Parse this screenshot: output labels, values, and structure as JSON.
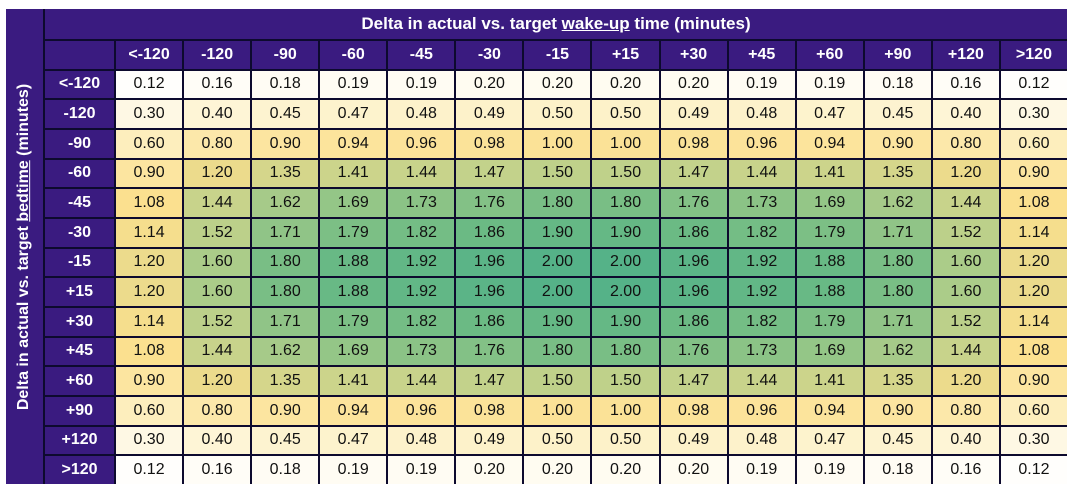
{
  "chart_data": {
    "type": "heatmap",
    "title_parts": [
      "Delta in actual vs. target ",
      "wake-up",
      " time (minutes)"
    ],
    "ylabel_parts": [
      "Delta in actual vs. target ",
      "bedtime",
      " (minutes)"
    ],
    "x_categories": [
      "<-120",
      "-120",
      "-90",
      "-60",
      "-45",
      "-30",
      "-15",
      "+15",
      "+30",
      "+45",
      "+60",
      "+90",
      "+120",
      ">120"
    ],
    "y_categories": [
      "<-120",
      "-120",
      "-90",
      "-60",
      "-45",
      "-30",
      "-15",
      "+15",
      "+30",
      "+45",
      "+60",
      "+90",
      "+120",
      ">120"
    ],
    "values": [
      [
        "0.12",
        "0.16",
        "0.18",
        "0.19",
        "0.19",
        "0.20",
        "0.20",
        "0.20",
        "0.20",
        "0.19",
        "0.19",
        "0.18",
        "0.16",
        "0.12"
      ],
      [
        "0.30",
        "0.40",
        "0.45",
        "0.47",
        "0.48",
        "0.49",
        "0.50",
        "0.50",
        "0.49",
        "0.48",
        "0.47",
        "0.45",
        "0.40",
        "0.30"
      ],
      [
        "0.60",
        "0.80",
        "0.90",
        "0.94",
        "0.96",
        "0.98",
        "1.00",
        "1.00",
        "0.98",
        "0.96",
        "0.94",
        "0.90",
        "0.80",
        "0.60"
      ],
      [
        "0.90",
        "1.20",
        "1.35",
        "1.41",
        "1.44",
        "1.47",
        "1.50",
        "1.50",
        "1.47",
        "1.44",
        "1.41",
        "1.35",
        "1.20",
        "0.90"
      ],
      [
        "1.08",
        "1.44",
        "1.62",
        "1.69",
        "1.73",
        "1.76",
        "1.80",
        "1.80",
        "1.76",
        "1.73",
        "1.69",
        "1.62",
        "1.44",
        "1.08"
      ],
      [
        "1.14",
        "1.52",
        "1.71",
        "1.79",
        "1.82",
        "1.86",
        "1.90",
        "1.90",
        "1.86",
        "1.82",
        "1.79",
        "1.71",
        "1.52",
        "1.14"
      ],
      [
        "1.20",
        "1.60",
        "1.80",
        "1.88",
        "1.92",
        "1.96",
        "2.00",
        "2.00",
        "1.96",
        "1.92",
        "1.88",
        "1.80",
        "1.60",
        "1.20"
      ],
      [
        "1.20",
        "1.60",
        "1.80",
        "1.88",
        "1.92",
        "1.96",
        "2.00",
        "2.00",
        "1.96",
        "1.92",
        "1.88",
        "1.80",
        "1.60",
        "1.20"
      ],
      [
        "1.14",
        "1.52",
        "1.71",
        "1.79",
        "1.82",
        "1.86",
        "1.90",
        "1.90",
        "1.86",
        "1.82",
        "1.79",
        "1.71",
        "1.52",
        "1.14"
      ],
      [
        "1.08",
        "1.44",
        "1.62",
        "1.69",
        "1.73",
        "1.76",
        "1.80",
        "1.80",
        "1.76",
        "1.73",
        "1.69",
        "1.62",
        "1.44",
        "1.08"
      ],
      [
        "0.90",
        "1.20",
        "1.35",
        "1.41",
        "1.44",
        "1.47",
        "1.50",
        "1.50",
        "1.47",
        "1.44",
        "1.41",
        "1.35",
        "1.20",
        "0.90"
      ],
      [
        "0.60",
        "0.80",
        "0.90",
        "0.94",
        "0.96",
        "0.98",
        "1.00",
        "1.00",
        "0.98",
        "0.96",
        "0.94",
        "0.90",
        "0.80",
        "0.60"
      ],
      [
        "0.30",
        "0.40",
        "0.45",
        "0.47",
        "0.48",
        "0.49",
        "0.50",
        "0.50",
        "0.49",
        "0.48",
        "0.47",
        "0.45",
        "0.40",
        "0.30"
      ],
      [
        "0.12",
        "0.16",
        "0.18",
        "0.19",
        "0.19",
        "0.20",
        "0.20",
        "0.20",
        "0.20",
        "0.19",
        "0.19",
        "0.18",
        "0.16",
        "0.12"
      ]
    ],
    "color_scale": [
      "#ffffff",
      "#fdf0c2",
      "#fbdf8d",
      "#b7cf8a",
      "#6dbb84",
      "#55b288"
    ],
    "header_color": "#3a1b80",
    "border_color": "#0d0a2e"
  }
}
